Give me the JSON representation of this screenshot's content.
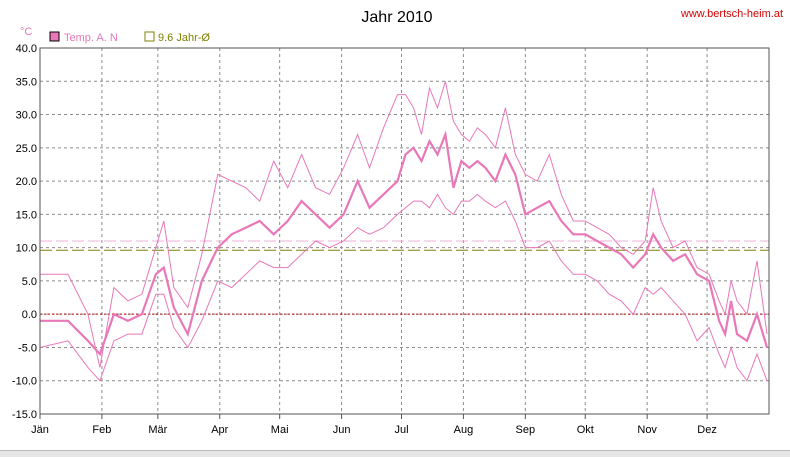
{
  "chart_data": {
    "type": "line",
    "title": "Jahr 2010",
    "source": "www.bertsch-heim.at",
    "unit": "°C",
    "ylim": [
      -15,
      40
    ],
    "yticks": [
      "40.0",
      "35.0",
      "30.0",
      "25.0",
      "20.0",
      "15.0",
      "10.0",
      "5.0",
      "0.0",
      "-5.0",
      "-10.0",
      "-15.0"
    ],
    "months": [
      "Jän",
      "Feb",
      "Mär",
      "Apr",
      "Mai",
      "Jun",
      "Jul",
      "Aug",
      "Sep",
      "Okt",
      "Nov",
      "Dez"
    ],
    "grid": true,
    "legend_position": "top-left",
    "legend": [
      {
        "label": "Temp. A. N",
        "color": "#e878b8"
      },
      {
        "label": "9.6 Jahr-Ø",
        "color": "#808000"
      }
    ],
    "reference_lines": [
      {
        "value": 9.6,
        "color": "#808000",
        "style": "dashed"
      },
      {
        "value": 11.0,
        "color": "#f0b0d8",
        "style": "dashed"
      },
      {
        "value": 0,
        "color": "#cc0000",
        "style": "dotted"
      }
    ],
    "series": [
      {
        "name": "Temp. A. N",
        "color": "#e878b8",
        "x": [
          1,
          15,
          25,
          31,
          38,
          45,
          52,
          59,
          63,
          68,
          75,
          82,
          90,
          97,
          104,
          111,
          118,
          125,
          132,
          139,
          146,
          153,
          160,
          166,
          173,
          180,
          184,
          188,
          192,
          196,
          200,
          204,
          208,
          212,
          216,
          220,
          224,
          229,
          234,
          239,
          244,
          250,
          256,
          262,
          268,
          274,
          280,
          286,
          292,
          298,
          304,
          308,
          312,
          318,
          324,
          330,
          336,
          341,
          344,
          347,
          350,
          355,
          360,
          365
        ],
        "daily_mean": [
          -1,
          -1,
          -4,
          -6,
          0,
          -1,
          0,
          6,
          7,
          1,
          -3,
          5,
          10,
          12,
          13,
          14,
          12,
          14,
          17,
          15,
          13,
          15,
          20,
          16,
          18,
          20,
          24,
          25,
          23,
          26,
          24,
          27,
          19,
          23,
          22,
          23,
          22,
          20,
          24,
          21,
          15,
          16,
          17,
          14,
          12,
          12,
          11,
          10,
          9,
          7,
          9,
          12,
          10,
          8,
          9,
          6,
          5,
          -1,
          -3,
          2,
          -3,
          -4,
          0,
          -5
        ],
        "daily_max": [
          6,
          6,
          0,
          -8,
          4,
          2,
          3,
          10,
          14,
          4,
          1,
          9,
          21,
          20,
          19,
          17,
          23,
          19,
          24,
          19,
          18,
          22,
          27,
          22,
          28,
          33,
          33,
          31,
          27,
          34,
          31,
          35,
          29,
          27,
          26,
          28,
          27,
          25,
          31,
          24,
          21,
          20,
          24,
          18,
          14,
          14,
          13,
          12,
          10,
          9,
          11,
          19,
          14,
          10,
          11,
          7,
          6,
          2,
          0,
          5,
          2,
          0,
          8,
          -3
        ],
        "daily_min": [
          -5,
          -4,
          -8,
          -10,
          -4,
          -3,
          -3,
          3,
          3,
          -2,
          -5,
          -1,
          5,
          4,
          6,
          8,
          7,
          7,
          9,
          11,
          10,
          11,
          13,
          12,
          13,
          15,
          16,
          17,
          17,
          16,
          18,
          16,
          15,
          17,
          17,
          18,
          17,
          16,
          17,
          14,
          10,
          10,
          11,
          8,
          6,
          6,
          5,
          3,
          2,
          0,
          4,
          3,
          4,
          2,
          0,
          -4,
          -2,
          -6,
          -8,
          -5,
          -8,
          -10,
          -6,
          -10
        ]
      }
    ]
  }
}
